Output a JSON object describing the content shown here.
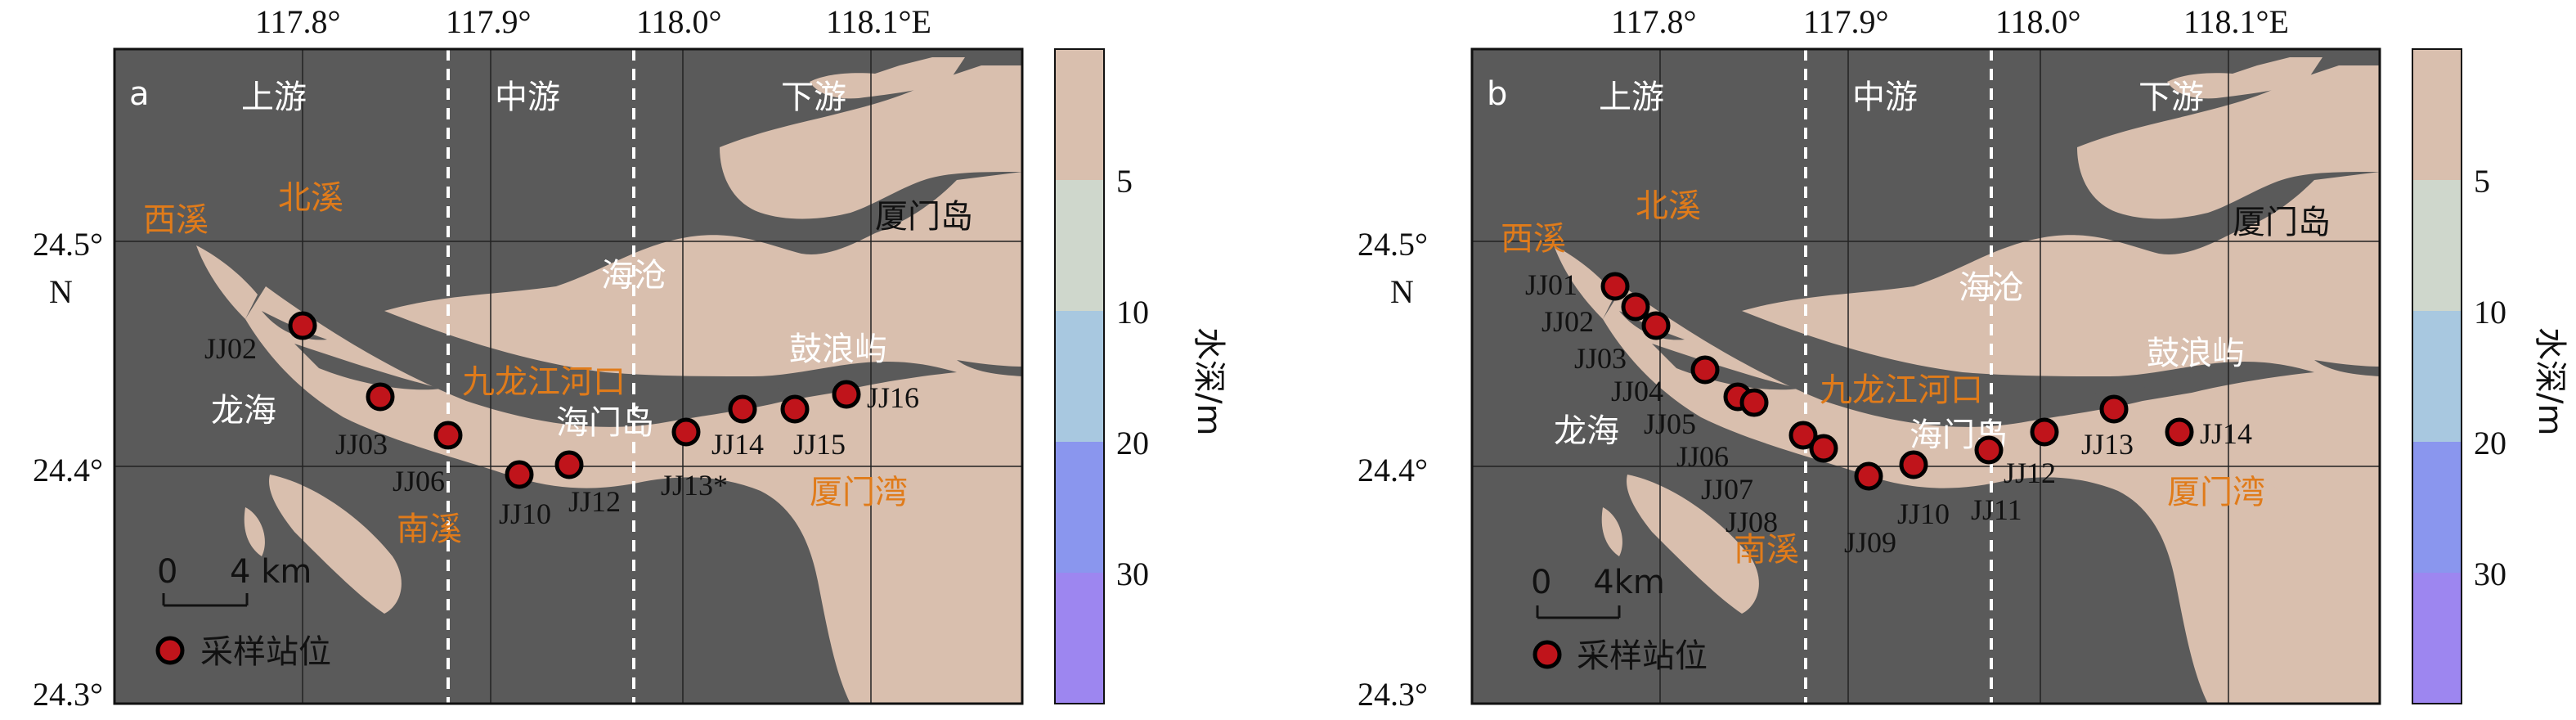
{
  "colors": {
    "land": "#5a5a5a",
    "water": "#d9bfae",
    "station_fill": "#c0141b",
    "orange_text": "#e07b1a",
    "colorbar": [
      "#d9bfae",
      "#cfd7cc",
      "#a8c8e0",
      "#8a96ee",
      "#9d86f0"
    ]
  },
  "colorbar": {
    "label": "水深/m",
    "ticks": [
      "5",
      "10",
      "20",
      "30"
    ]
  },
  "panels": [
    {
      "id": "a",
      "lon_ticks": [
        "117.8°",
        "117.9°",
        "118.0°",
        "118.1°E"
      ],
      "lat_ticks": [
        "24.5°",
        "24.4°",
        "24.3°"
      ],
      "lat_unit": "N",
      "sections": [
        "上游",
        "中游",
        "下游"
      ],
      "places_white": [
        "海沧",
        "龙海",
        "海门岛",
        "鼓浪屿"
      ],
      "places_black": [
        "厦门岛"
      ],
      "places_orange": [
        "西溪",
        "北溪",
        "九龙江河口",
        "南溪",
        "厦门湾"
      ],
      "scale_label": "0     4 km",
      "legend_label": "采样站位",
      "stations": [
        "JJ02",
        "JJ03",
        "JJ06",
        "JJ10",
        "JJ12",
        "JJ13*",
        "JJ14",
        "JJ15",
        "JJ16"
      ]
    },
    {
      "id": "b",
      "lon_ticks": [
        "117.8°",
        "117.9°",
        "118.0°",
        "118.1°E"
      ],
      "lat_ticks": [
        "24.5°",
        "24.4°",
        "24.3°"
      ],
      "lat_unit": "N",
      "sections": [
        "上游",
        "中游",
        "下游"
      ],
      "places_white": [
        "海沧",
        "龙海",
        "海门岛",
        "鼓浪屿"
      ],
      "places_black": [
        "厦门岛"
      ],
      "places_orange": [
        "西溪",
        "北溪",
        "九龙江河口",
        "南溪",
        "厦门湾"
      ],
      "scale_label": "0    4km",
      "legend_label": "采样站位",
      "stations": [
        "JJ01",
        "JJ02",
        "JJ03",
        "JJ04",
        "JJ05",
        "JJ06",
        "JJ07",
        "JJ08",
        "JJ09",
        "JJ10",
        "JJ11",
        "JJ12",
        "JJ13",
        "JJ14"
      ]
    }
  ]
}
